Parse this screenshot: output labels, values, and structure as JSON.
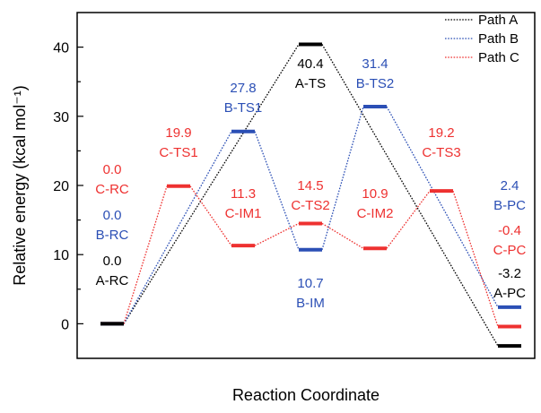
{
  "chart_data": {
    "type": "line",
    "title": "",
    "xlabel": "Reaction Coordinate",
    "ylabel": "Relative energy (kcal mol⁻¹)",
    "ylim": [
      -5,
      45
    ],
    "yticks": [
      0,
      10,
      20,
      30,
      40
    ],
    "grid": false,
    "legend_position": "top-right",
    "series": [
      {
        "name": "Path A",
        "color": "#000000",
        "points": [
          {
            "label": "A-RC",
            "value": 0.0,
            "value_text": "0.0",
            "step": 0
          },
          {
            "label": "A-TS",
            "value": 40.4,
            "value_text": "40.4",
            "step": 3
          },
          {
            "label": "A-PC",
            "value": -3.2,
            "value_text": "-3.2",
            "step": 6
          }
        ]
      },
      {
        "name": "Path B",
        "color": "#2b4fb5",
        "points": [
          {
            "label": "B-RC",
            "value": 0.0,
            "value_text": "0.0",
            "step": 0
          },
          {
            "label": "B-TS1",
            "value": 27.8,
            "value_text": "27.8",
            "step": 2
          },
          {
            "label": "B-IM",
            "value": 10.7,
            "value_text": "10.7",
            "step": 3
          },
          {
            "label": "B-TS2",
            "value": 31.4,
            "value_text": "31.4",
            "step": 4
          },
          {
            "label": "B-PC",
            "value": 2.4,
            "value_text": "2.4",
            "step": 6
          }
        ]
      },
      {
        "name": "Path C",
        "color": "#ee3130",
        "points": [
          {
            "label": "C-RC",
            "value": 0.0,
            "value_text": "0.0",
            "step": 0
          },
          {
            "label": "C-TS1",
            "value": 19.9,
            "value_text": "19.9",
            "step": 1
          },
          {
            "label": "C-IM1",
            "value": 11.3,
            "value_text": "11.3",
            "step": 2
          },
          {
            "label": "C-TS2",
            "value": 14.5,
            "value_text": "14.5",
            "step": 3
          },
          {
            "label": "C-IM2",
            "value": 10.9,
            "value_text": "10.9",
            "step": 4
          },
          {
            "label": "C-TS3",
            "value": 19.2,
            "value_text": "19.2",
            "step": 5
          },
          {
            "label": "C-PC",
            "value": -0.4,
            "value_text": "-0.4",
            "step": 6
          }
        ]
      }
    ]
  }
}
